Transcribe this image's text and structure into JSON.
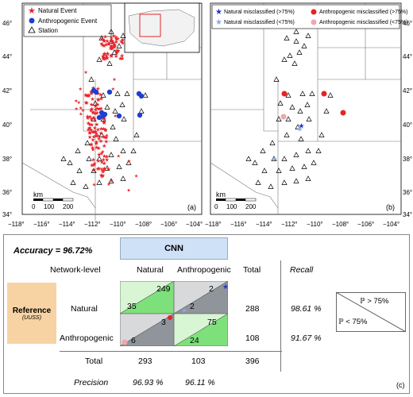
{
  "maps": {
    "left": {
      "legend": [
        "Natural Event",
        "Anthropogenic Event",
        "Station"
      ],
      "scale_label": "km",
      "scale_ticks": [
        "0",
        "100",
        "200"
      ],
      "panel_label": "(a)"
    },
    "right": {
      "legend": [
        "Natural misclassified (>75%)",
        "Natural misclassified (<75%)",
        "Anthropogenic misclassified (>75%)",
        "Anthropogenic misclassified (<75%)"
      ],
      "scale_label": "km",
      "scale_ticks": [
        "0",
        "100",
        "200"
      ],
      "panel_label": "(b)"
    },
    "lat_labels": [
      "46°",
      "44°",
      "42°",
      "40°",
      "38°",
      "36°",
      "34°"
    ],
    "lon_labels": [
      "−118°",
      "−116°",
      "−114°",
      "−112°",
      "−110°",
      "−108°",
      "−106°",
      "−104°"
    ],
    "colors": {
      "natural": "#e8242a",
      "anthropogenic": "#1c3fd1",
      "nat_mis_high": "#2233cc",
      "nat_mis_low": "#8aa6f0",
      "ant_mis_high": "#e42424",
      "ant_mis_low": "#eea7ae"
    }
  },
  "cm": {
    "accuracy": "Accuracy = 96.72%",
    "cnn_header": "CNN",
    "network_level": "Network-level",
    "col_natural": "Natural",
    "col_anthropogenic": "Anthropogenic",
    "col_total": "Total",
    "col_recall": "Recall",
    "reference_title": "Reference",
    "reference_sub": "(UUSS)",
    "row_natural": "Natural",
    "row_anthropogenic": "Anthropogenic",
    "row_total": "Total",
    "row_precision": "Precision",
    "nn_high": "249",
    "nn_low": "35",
    "na_high": "2",
    "na_low": "2",
    "an_high": "3",
    "an_low": "6",
    "aa_high": "75",
    "aa_low": "24",
    "total_natural": "288",
    "total_anthro": "108",
    "recall_natural": "98.61 %",
    "recall_anthro": "91.67 %",
    "col_total_natural": "293",
    "col_total_anthro": "103",
    "grand_total": "396",
    "precision_natural": "96.93 %",
    "precision_anthro": "96.11 %",
    "key_gt": "ℙ > 75%",
    "key_lt": "ℙ < 75%",
    "panel_label": "(c)",
    "colors": {
      "cnn_header": "#cfe1f7",
      "reference": "#f7d3a4",
      "green_strong": "#7ee07a",
      "green_light": "#d8f5d4",
      "gray_strong": "#8f959a",
      "gray_light": "#d7d9db"
    }
  }
}
